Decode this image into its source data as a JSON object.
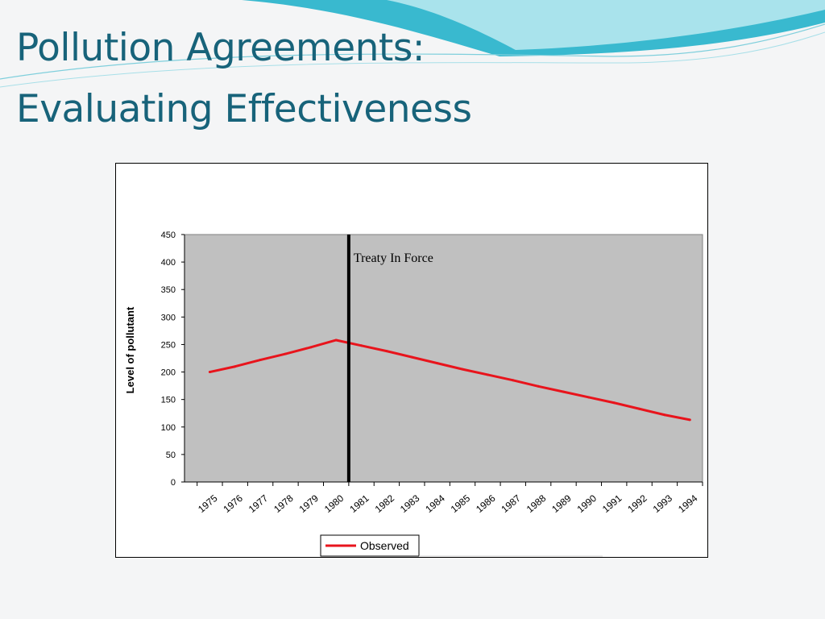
{
  "slide": {
    "title_line1": "Pollution Agreements:",
    "title_line2": "Evaluating Effectiveness"
  },
  "colors": {
    "title": "#17637a",
    "plot_bg": "#c0c0c0",
    "series": "#e8141c",
    "event_line": "#000000"
  },
  "chart_data": {
    "type": "line",
    "title": "",
    "xlabel": "",
    "ylabel": "Level of pollutant",
    "ylim": [
      0,
      450
    ],
    "yticks": [
      0,
      50,
      100,
      150,
      200,
      250,
      300,
      350,
      400,
      450
    ],
    "categories": [
      "1975",
      "1976",
      "1977",
      "1978",
      "1979",
      "1980",
      "1981",
      "1982",
      "1983",
      "1984",
      "1985",
      "1986",
      "1987",
      "1988",
      "1989",
      "1990",
      "1991",
      "1992",
      "1993",
      "1994"
    ],
    "series": [
      {
        "name": "Observed",
        "values": [
          200,
          210,
          222,
          233,
          245,
          258,
          248,
          238,
          227,
          216,
          205,
          195,
          185,
          174,
          164,
          154,
          144,
          133,
          122,
          113
        ]
      }
    ],
    "event": {
      "label": "Treaty In Force",
      "x_between": [
        "1980",
        "1981"
      ]
    },
    "grid": false,
    "legend": {
      "position": "bottom"
    }
  }
}
